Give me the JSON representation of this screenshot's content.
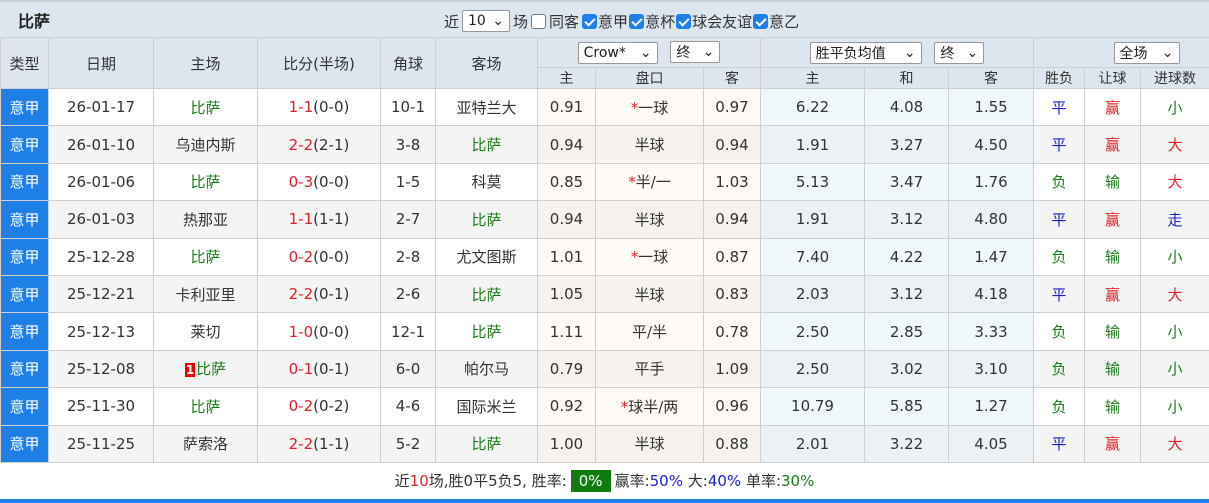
{
  "title": "比萨",
  "filters": {
    "near_label": "近",
    "count": "10",
    "count_suffix": "场",
    "same_away": {
      "label": "同客",
      "checked": false
    },
    "leagues": [
      {
        "label": "意甲",
        "checked": true
      },
      {
        "label": "意杯",
        "checked": true
      },
      {
        "label": "球会友谊",
        "checked": true
      },
      {
        "label": "意乙",
        "checked": true
      }
    ]
  },
  "columns": {
    "type": "类型",
    "date": "日期",
    "home": "主场",
    "score": "比分(半场)",
    "corner": "角球",
    "away": "客场",
    "company": "Crow*",
    "company_time": "终",
    "avg": "胜平负均值",
    "avg_time": "终",
    "period": "全场",
    "sub": [
      "主",
      "盘口",
      "客",
      "主",
      "和",
      "客",
      "胜负",
      "让球",
      "进球数"
    ]
  },
  "colors": {
    "accent": "#1e7fe6",
    "team": "#1a7d1a",
    "loss": "#e0202a",
    "win_rate_bg": "#107c10"
  },
  "rows": [
    {
      "type": "意甲",
      "date": "26-01-17",
      "home": "比萨",
      "score": "1-1",
      "half": "(0-0)",
      "corner": "10-1",
      "away": "亚特兰大",
      "h": "0.91",
      "line": "*一球",
      "a": "0.97",
      "w": "6.22",
      "d": "4.08",
      "l": "1.55",
      "res": "平",
      "hc": "赢",
      "ou": "小"
    },
    {
      "type": "意甲",
      "date": "26-01-10",
      "home": "乌迪内斯",
      "score": "2-2",
      "half": "(2-1)",
      "corner": "3-8",
      "away": "比萨",
      "h": "0.94",
      "line": "半球",
      "a": "0.94",
      "w": "1.91",
      "d": "3.27",
      "l": "4.50",
      "res": "平",
      "hc": "赢",
      "ou": "大"
    },
    {
      "type": "意甲",
      "date": "26-01-06",
      "home": "比萨",
      "score": "0-3",
      "half": "(0-0)",
      "corner": "1-5",
      "away": "科莫",
      "h": "0.85",
      "line": "*半/一",
      "a": "1.03",
      "w": "5.13",
      "d": "3.47",
      "l": "1.76",
      "res": "负",
      "hc": "输",
      "ou": "大"
    },
    {
      "type": "意甲",
      "date": "26-01-03",
      "home": "热那亚",
      "score": "1-1",
      "half": "(1-1)",
      "corner": "2-7",
      "away": "比萨",
      "h": "0.94",
      "line": "半球",
      "a": "0.94",
      "w": "1.91",
      "d": "3.12",
      "l": "4.80",
      "res": "平",
      "hc": "赢",
      "ou": "走"
    },
    {
      "type": "意甲",
      "date": "25-12-28",
      "home": "比萨",
      "score": "0-2",
      "half": "(0-0)",
      "corner": "2-8",
      "away": "尤文图斯",
      "h": "1.01",
      "line": "*一球",
      "a": "0.87",
      "w": "7.40",
      "d": "4.22",
      "l": "1.47",
      "res": "负",
      "hc": "输",
      "ou": "小"
    },
    {
      "type": "意甲",
      "date": "25-12-21",
      "home": "卡利亚里",
      "score": "2-2",
      "half": "(0-1)",
      "corner": "2-6",
      "away": "比萨",
      "h": "1.05",
      "line": "半球",
      "a": "0.83",
      "w": "2.03",
      "d": "3.12",
      "l": "4.18",
      "res": "平",
      "hc": "赢",
      "ou": "大"
    },
    {
      "type": "意甲",
      "date": "25-12-13",
      "home": "莱切",
      "score": "1-0",
      "half": "(0-0)",
      "corner": "12-1",
      "away": "比萨",
      "h": "1.11",
      "line": "平/半",
      "a": "0.78",
      "w": "2.50",
      "d": "2.85",
      "l": "3.33",
      "res": "负",
      "hc": "输",
      "ou": "小"
    },
    {
      "type": "意甲",
      "date": "25-12-08",
      "home": "比萨",
      "home_badge": "1",
      "score": "0-1",
      "half": "(0-1)",
      "corner": "6-0",
      "away": "帕尔马",
      "h": "0.79",
      "line": "平手",
      "a": "1.09",
      "w": "2.50",
      "d": "3.02",
      "l": "3.10",
      "res": "负",
      "hc": "输",
      "ou": "小"
    },
    {
      "type": "意甲",
      "date": "25-11-30",
      "home": "比萨",
      "score": "0-2",
      "half": "(0-2)",
      "corner": "4-6",
      "away": "国际米兰",
      "h": "0.92",
      "line": "*球半/两",
      "a": "0.96",
      "w": "10.79",
      "d": "5.85",
      "l": "1.27",
      "res": "负",
      "hc": "输",
      "ou": "小"
    },
    {
      "type": "意甲",
      "date": "25-11-25",
      "home": "萨索洛",
      "score": "2-2",
      "half": "(1-1)",
      "corner": "5-2",
      "away": "比萨",
      "h": "1.00",
      "line": "半球",
      "a": "0.88",
      "w": "2.01",
      "d": "3.22",
      "l": "4.05",
      "res": "平",
      "hc": "赢",
      "ou": "大"
    }
  ],
  "team": "比萨",
  "summary": {
    "p1": "近",
    "n": "10",
    "p2": "场,胜0平5负5, 胜率:",
    "win_rate": "0%",
    "hc_label": "赢率:",
    "hc_rate": "50%",
    "big_label": "大:",
    "big_rate": "40%",
    "odd_label": "单率:",
    "odd_rate": "30%"
  }
}
